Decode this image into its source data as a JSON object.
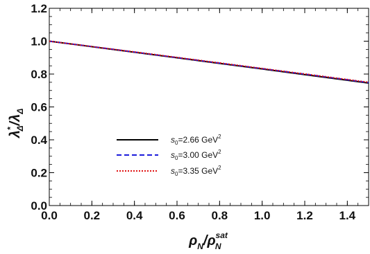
{
  "chart_data": {
    "type": "line",
    "xlim": [
      0.0,
      1.5
    ],
    "ylim": [
      0.0,
      1.2
    ],
    "x_ticks": [
      "0.0",
      "0.2",
      "0.4",
      "0.6",
      "0.8",
      "1.0",
      "1.2",
      "1.4"
    ],
    "y_ticks": [
      "0.0",
      "0.2",
      "0.4",
      "0.6",
      "0.8",
      "1.0",
      "1.2"
    ],
    "xlabel": {
      "base": "ρ",
      "sub": "N",
      "slash": "/",
      "base2": "ρ",
      "sub2": "N",
      "sup2": "sat"
    },
    "ylabel": {
      "base": "λ",
      "sub": "Δ",
      "sup": "*",
      "slash": "/",
      "base2": "λ",
      "sub2": "Δ"
    },
    "legend_position": "center-left",
    "series": [
      {
        "name": "s0=2.66 GeV2",
        "label_parts": {
          "s": "s",
          "sub": "0",
          "eq": "=2.66 GeV",
          "sup": "2"
        },
        "color": "#000000",
        "dash": "solid",
        "x": [
          0.0,
          0.25,
          0.5,
          0.75,
          1.0,
          1.25,
          1.5
        ],
        "y": [
          1.0,
          0.958,
          0.916,
          0.873,
          0.831,
          0.788,
          0.745
        ]
      },
      {
        "name": "s0=3.00 GeV2",
        "label_parts": {
          "s": "s",
          "sub": "0",
          "eq": "=3.00 GeV",
          "sup": "2"
        },
        "color": "#1a1adb",
        "dash": "dashed",
        "x": [
          0.0,
          0.25,
          0.5,
          0.75,
          1.0,
          1.25,
          1.5
        ],
        "y": [
          1.0,
          0.959,
          0.917,
          0.875,
          0.833,
          0.791,
          0.748
        ]
      },
      {
        "name": "s0=3.35 GeV2",
        "label_parts": {
          "s": "s",
          "sub": "0",
          "eq": "=3.35 GeV",
          "sup": "2"
        },
        "color": "#e01010",
        "dash": "dotted",
        "x": [
          0.0,
          0.25,
          0.5,
          0.75,
          1.0,
          1.25,
          1.5
        ],
        "y": [
          1.0,
          0.959,
          0.918,
          0.876,
          0.834,
          0.792,
          0.75
        ]
      }
    ]
  }
}
